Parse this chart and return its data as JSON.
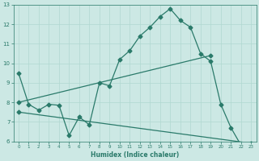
{
  "xlabel": "Humidex (Indice chaleur)",
  "ylabel": "",
  "bg_color": "#cce8e4",
  "grid_color": "#b0d8d0",
  "line_color": "#2a7a6a",
  "xlim": [
    -0.5,
    23.5
  ],
  "ylim": [
    6,
    13
  ],
  "xticks": [
    0,
    1,
    2,
    3,
    4,
    5,
    6,
    7,
    8,
    9,
    10,
    11,
    12,
    13,
    14,
    15,
    16,
    17,
    18,
    19,
    20,
    21,
    22,
    23
  ],
  "yticks": [
    6,
    7,
    8,
    9,
    10,
    11,
    12,
    13
  ],
  "curve1_x": [
    0,
    1,
    2,
    3,
    4,
    5,
    6,
    7,
    8,
    9,
    10,
    11,
    12,
    13,
    14,
    15,
    16,
    17,
    18,
    19,
    20,
    21,
    22,
    23
  ],
  "curve1_y": [
    9.5,
    7.9,
    7.6,
    7.9,
    7.85,
    6.3,
    7.25,
    6.85,
    9.0,
    8.85,
    10.2,
    10.65,
    11.4,
    11.85,
    12.4,
    12.8,
    12.2,
    11.85,
    10.5,
    10.1,
    7.9,
    6.7,
    5.8,
    5.7
  ],
  "curve2_x": [
    0,
    19
  ],
  "curve2_y": [
    8.0,
    10.4
  ],
  "curve3_x": [
    0,
    23
  ],
  "curve3_y": [
    7.5,
    5.9
  ],
  "markersize": 2.5,
  "linewidth": 0.9
}
